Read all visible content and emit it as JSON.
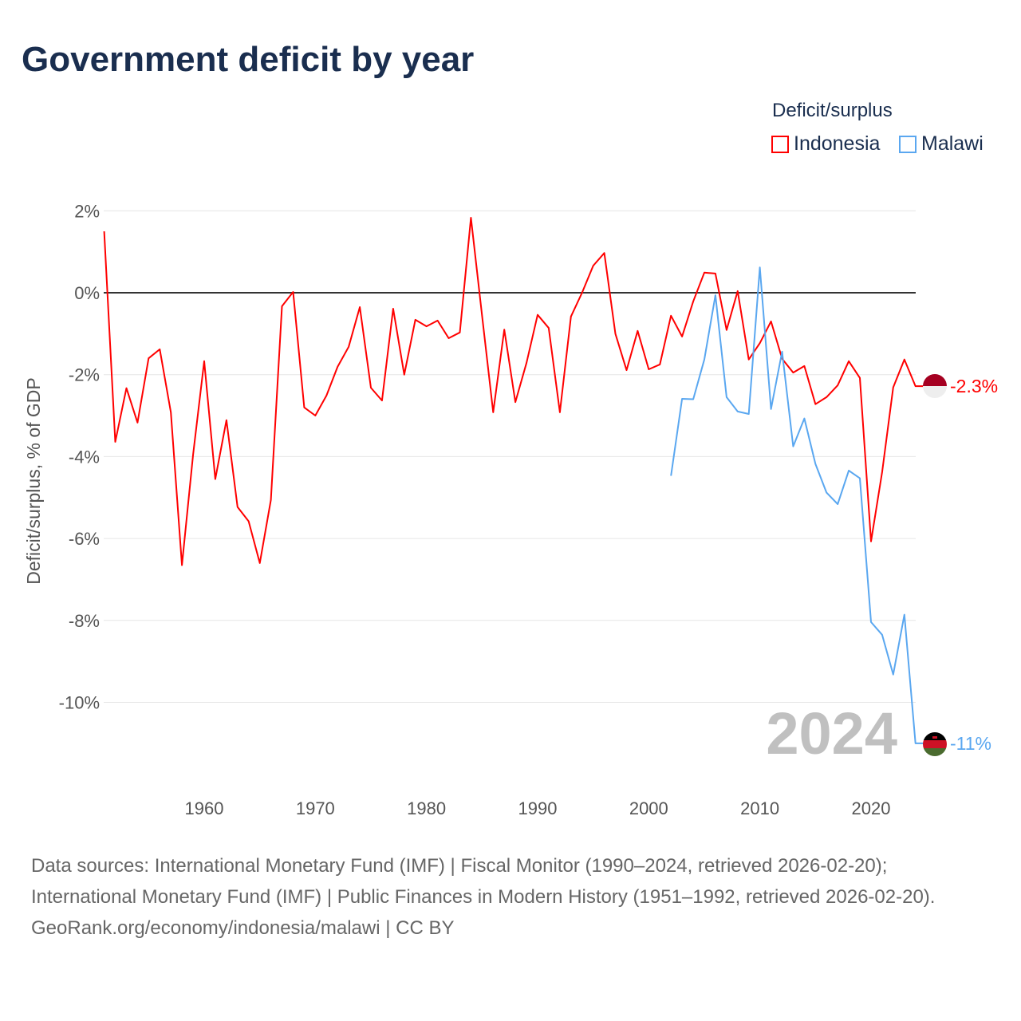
{
  "title": "Government deficit by year",
  "legend": {
    "title": "Deficit/surplus",
    "items": [
      {
        "name": "Indonesia",
        "color": "#ff0000"
      },
      {
        "name": "Malawi",
        "color": "#5aa7f0"
      }
    ]
  },
  "year_label": "2024",
  "end_labels": {
    "indonesia": "-2.3%",
    "malawi": "-11%"
  },
  "footer": {
    "sources": "Data sources: International Monetary Fund (IMF) | Fiscal Monitor (1990–2024, retrieved 2026-02-20); International Monetary Fund (IMF) | Public Finances in Modern History (1951–1992, retrieved 2026-02-20).",
    "credit": "GeoRank.org/economy/indonesia/malawi | CC BY"
  },
  "chart_data": {
    "type": "line",
    "title": "Government deficit by year",
    "ylabel": "Deficit/surplus, % of GDP",
    "xlabel": "",
    "ylim": [
      -11.5,
      2.3
    ],
    "xlim": [
      1951,
      2024
    ],
    "yticks": [
      2,
      0,
      -2,
      -4,
      -6,
      -8,
      -10
    ],
    "ytick_labels": [
      "2%",
      "0%",
      "-2%",
      "-4%",
      "-6%",
      "-8%",
      "-10%"
    ],
    "xticks": [
      1960,
      1970,
      1980,
      1990,
      2000,
      2010,
      2020
    ],
    "xtick_labels": [
      "1960",
      "1970",
      "1980",
      "1990",
      "2000",
      "2010",
      "2020"
    ],
    "grid": true,
    "legend_position": "top-right",
    "series": [
      {
        "name": "Indonesia",
        "color": "#ff0000",
        "start_year": 1951,
        "values": [
          1.5,
          -3.64,
          -2.33,
          -3.17,
          -1.6,
          -1.38,
          -2.92,
          -6.65,
          -3.95,
          -1.67,
          -4.55,
          -3.11,
          -5.23,
          -5.58,
          -6.6,
          -5.06,
          -0.33,
          0.02,
          -2.8,
          -3.0,
          -2.51,
          -1.81,
          -1.32,
          -0.35,
          -2.32,
          -2.63,
          -0.39,
          -2.0,
          -0.66,
          -0.82,
          -0.68,
          -1.11,
          -0.97,
          1.83,
          -0.55,
          -2.92,
          -0.9,
          -2.67,
          -1.71,
          -0.54,
          -0.86,
          -2.92,
          -0.58,
          0.0,
          0.66,
          0.97,
          -1.0,
          -1.89,
          -0.93,
          -1.87,
          -1.75,
          -0.56,
          -1.07,
          -0.21,
          0.49,
          0.47,
          -0.91,
          0.04,
          -1.63,
          -1.23,
          -0.7,
          -1.61,
          -1.95,
          -1.79,
          -2.72,
          -2.55,
          -2.26,
          -1.67,
          -2.08,
          -6.07,
          -4.38,
          -2.31,
          -1.63,
          -2.28
        ]
      },
      {
        "name": "Malawi",
        "color": "#5aa7f0",
        "start_year": 2002,
        "values": [
          -4.47,
          -2.59,
          -2.6,
          -1.63,
          -0.06,
          -2.55,
          -2.9,
          -2.96,
          0.62,
          -2.84,
          -1.44,
          -3.75,
          -3.07,
          -4.18,
          -4.88,
          -5.16,
          -4.34,
          -4.53,
          -8.04,
          -8.35,
          -9.32,
          -7.86,
          -11.0
        ]
      }
    ]
  }
}
